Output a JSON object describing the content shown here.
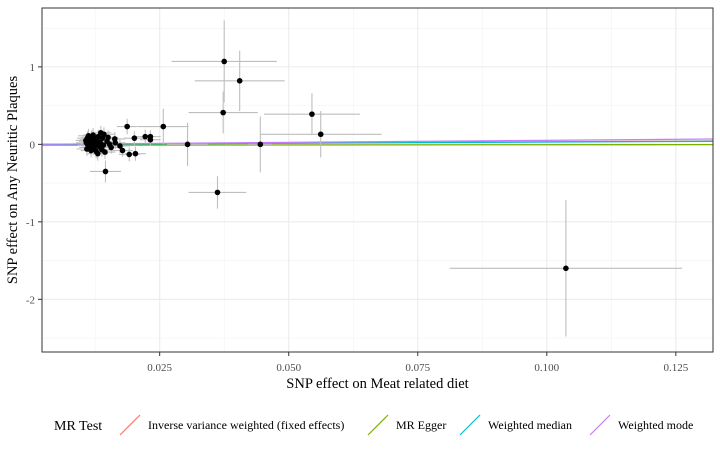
{
  "chart_data": {
    "type": "scatter",
    "xlabel": "SNP effect on Meat related diet",
    "ylabel": "SNP effect on Any Neuritic Plaques",
    "xlim": [
      0.0022,
      0.1322
    ],
    "ylim": [
      -2.68,
      1.76
    ],
    "x_ticks": [
      0.025,
      0.05,
      0.075,
      0.1,
      0.125
    ],
    "x_tick_labels": [
      "0.025",
      "0.050",
      "0.075",
      "0.100",
      "0.125"
    ],
    "y_ticks": [
      -2,
      -1,
      0,
      1
    ],
    "y_tick_labels": [
      "-2",
      "-1",
      "0",
      "1"
    ],
    "grid": true,
    "legend": {
      "title": "MR Test",
      "placement": "bottom",
      "entries": [
        {
          "label": "Inverse variance weighted (fixed effects)",
          "color": "#F8766D"
        },
        {
          "label": "MR Egger",
          "color": "#7CAE00"
        },
        {
          "label": "Weighted median",
          "color": "#00BFC4"
        },
        {
          "label": "Weighted mode",
          "color": "#C77CFF"
        }
      ]
    },
    "lines": [
      {
        "method": "Inverse variance weighted (fixed effects)",
        "color": "#F8766D",
        "slope": 0.33,
        "intercept": 0
      },
      {
        "method": "MR Egger",
        "color": "#7CAE00",
        "slope": 0.05,
        "intercept": -0.01
      },
      {
        "method": "Weighted median",
        "color": "#00BFC4",
        "slope": 0.3,
        "intercept": 0
      },
      {
        "method": "Weighted mode",
        "color": "#C77CFF",
        "slope": 0.52,
        "intercept": 0
      }
    ],
    "points": [
      {
        "x": 0.0375,
        "y": 1.07,
        "xerr": 0.0102,
        "yerr": 0.53
      },
      {
        "x": 0.0405,
        "y": 0.82,
        "xerr": 0.0087,
        "yerr": 0.39
      },
      {
        "x": 0.0373,
        "y": 0.41,
        "xerr": 0.0067,
        "yerr": 0.27
      },
      {
        "x": 0.0545,
        "y": 0.39,
        "xerr": 0.0093,
        "yerr": 0.27
      },
      {
        "x": 0.0562,
        "y": 0.13,
        "xerr": 0.0118,
        "yerr": 0.3
      },
      {
        "x": 0.0445,
        "y": 0.0,
        "xerr": 0.0023,
        "yerr": 0.36
      },
      {
        "x": 0.0304,
        "y": 0.0,
        "xerr": 0.004,
        "yerr": 0.28
      },
      {
        "x": 0.0257,
        "y": 0.23,
        "xerr": 0.0049,
        "yerr": 0.23
      },
      {
        "x": 0.0362,
        "y": -0.62,
        "xerr": 0.0056,
        "yerr": 0.21
      },
      {
        "x": 0.1037,
        "y": -1.6,
        "xerr": 0.0225,
        "yerr": 0.88
      },
      {
        "x": 0.0145,
        "y": -0.35,
        "xerr": 0.003,
        "yerr": 0.14
      },
      {
        "x": 0.0187,
        "y": 0.23,
        "xerr": 0.002,
        "yerr": 0.1
      },
      {
        "x": 0.0222,
        "y": 0.1,
        "xerr": 0.002,
        "yerr": 0.09
      },
      {
        "x": 0.0232,
        "y": 0.06,
        "xerr": 0.002,
        "yerr": 0.08
      },
      {
        "x": 0.0232,
        "y": 0.1,
        "xerr": 0.002,
        "yerr": 0.08
      },
      {
        "x": 0.0201,
        "y": 0.08,
        "xerr": 0.002,
        "yerr": 0.09
      },
      {
        "x": 0.0203,
        "y": -0.12,
        "xerr": 0.002,
        "yerr": 0.09
      },
      {
        "x": 0.0191,
        "y": -0.13,
        "xerr": 0.002,
        "yerr": 0.09
      },
      {
        "x": 0.0178,
        "y": -0.08,
        "xerr": 0.002,
        "yerr": 0.08
      },
      {
        "x": 0.0173,
        "y": -0.02,
        "xerr": 0.002,
        "yerr": 0.09
      },
      {
        "x": 0.0163,
        "y": 0.07,
        "xerr": 0.002,
        "yerr": 0.09
      },
      {
        "x": 0.0164,
        "y": 0.02,
        "xerr": 0.002,
        "yerr": 0.08
      },
      {
        "x": 0.0156,
        "y": -0.04,
        "xerr": 0.002,
        "yerr": 0.08
      },
      {
        "x": 0.0148,
        "y": 0.04,
        "xerr": 0.002,
        "yerr": 0.08
      },
      {
        "x": 0.0142,
        "y": 0.13,
        "xerr": 0.002,
        "yerr": 0.09
      },
      {
        "x": 0.0139,
        "y": 0.08,
        "xerr": 0.002,
        "yerr": 0.08
      },
      {
        "x": 0.0138,
        "y": -0.07,
        "xerr": 0.002,
        "yerr": 0.09
      },
      {
        "x": 0.0135,
        "y": 0.02,
        "xerr": 0.002,
        "yerr": 0.08
      },
      {
        "x": 0.0133,
        "y": -0.03,
        "xerr": 0.002,
        "yerr": 0.08
      },
      {
        "x": 0.0131,
        "y": 0.1,
        "xerr": 0.002,
        "yerr": 0.09
      },
      {
        "x": 0.0129,
        "y": 0.05,
        "xerr": 0.002,
        "yerr": 0.08
      },
      {
        "x": 0.0127,
        "y": -0.09,
        "xerr": 0.002,
        "yerr": 0.09
      },
      {
        "x": 0.0126,
        "y": 0.0,
        "xerr": 0.002,
        "yerr": 0.08
      },
      {
        "x": 0.0124,
        "y": 0.07,
        "xerr": 0.002,
        "yerr": 0.08
      },
      {
        "x": 0.0123,
        "y": -0.05,
        "xerr": 0.002,
        "yerr": 0.09
      },
      {
        "x": 0.0121,
        "y": 0.12,
        "xerr": 0.002,
        "yerr": 0.09
      },
      {
        "x": 0.012,
        "y": 0.03,
        "xerr": 0.002,
        "yerr": 0.08
      },
      {
        "x": 0.0119,
        "y": -0.02,
        "xerr": 0.002,
        "yerr": 0.08
      },
      {
        "x": 0.0118,
        "y": 0.09,
        "xerr": 0.002,
        "yerr": 0.09
      },
      {
        "x": 0.0117,
        "y": -0.08,
        "xerr": 0.002,
        "yerr": 0.09
      },
      {
        "x": 0.0116,
        "y": 0.01,
        "xerr": 0.002,
        "yerr": 0.08
      },
      {
        "x": 0.0115,
        "y": 0.06,
        "xerr": 0.002,
        "yerr": 0.08
      },
      {
        "x": 0.0114,
        "y": -0.04,
        "xerr": 0.002,
        "yerr": 0.08
      },
      {
        "x": 0.0113,
        "y": 0.04,
        "xerr": 0.002,
        "yerr": 0.08
      },
      {
        "x": 0.0112,
        "y": 0.11,
        "xerr": 0.002,
        "yerr": 0.09
      },
      {
        "x": 0.0111,
        "y": -0.01,
        "xerr": 0.002,
        "yerr": 0.08
      },
      {
        "x": 0.011,
        "y": 0.08,
        "xerr": 0.002,
        "yerr": 0.09
      },
      {
        "x": 0.0109,
        "y": -0.06,
        "xerr": 0.002,
        "yerr": 0.09
      },
      {
        "x": 0.0108,
        "y": 0.02,
        "xerr": 0.002,
        "yerr": 0.08
      },
      {
        "x": 0.0107,
        "y": 0.05,
        "xerr": 0.002,
        "yerr": 0.08
      },
      {
        "x": 0.0144,
        "y": -0.1,
        "xerr": 0.002,
        "yerr": 0.09
      },
      {
        "x": 0.015,
        "y": 0.09,
        "xerr": 0.002,
        "yerr": 0.09
      },
      {
        "x": 0.0153,
        "y": 0.0,
        "xerr": 0.002,
        "yerr": 0.08
      },
      {
        "x": 0.0136,
        "y": 0.15,
        "xerr": 0.002,
        "yerr": 0.09
      },
      {
        "x": 0.013,
        "y": -0.12,
        "xerr": 0.002,
        "yerr": 0.09
      },
      {
        "x": 0.0141,
        "y": -0.01,
        "xerr": 0.002,
        "yerr": 0.08
      }
    ]
  }
}
